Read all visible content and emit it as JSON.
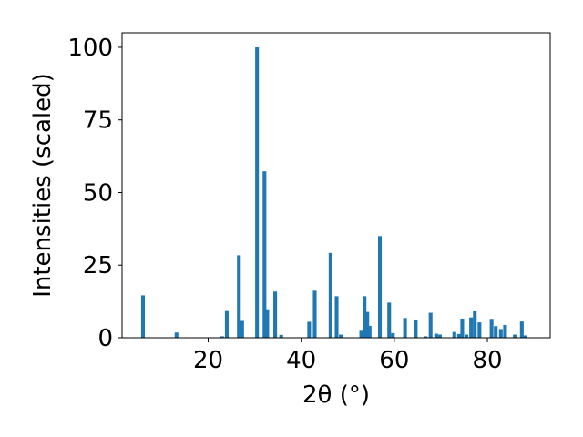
{
  "chart_data": {
    "type": "bar",
    "title": "",
    "xlabel": "2θ (°)",
    "ylabel": "Intensities (scaled)",
    "xlim": [
      1.5,
      93.5
    ],
    "ylim": [
      0,
      105
    ],
    "xticks": [
      20,
      40,
      60,
      80
    ],
    "yticks": [
      0,
      25,
      50,
      75,
      100
    ],
    "grid": false,
    "bar_color": "#1f77b4",
    "bar_width": 0.8,
    "x": [
      6.0,
      13.2,
      23.0,
      24.0,
      26.6,
      27.3,
      30.5,
      32.1,
      32.7,
      34.4,
      35.7,
      41.7,
      42.9,
      46.3,
      47.6,
      48.5,
      52.9,
      53.6,
      54.2,
      54.7,
      56.9,
      58.9,
      59.7,
      62.3,
      64.6,
      66.7,
      67.8,
      69.0,
      69.8,
      72.9,
      73.9,
      74.6,
      75.5,
      76.5,
      77.3,
      78.3,
      80.9,
      81.8,
      82.9,
      83.8,
      85.9,
      87.4,
      88.1
    ],
    "values": [
      14.6,
      1.8,
      0.5,
      9.2,
      28.4,
      5.8,
      100,
      57.3,
      9.8,
      15.9,
      1.0,
      5.5,
      16.2,
      29.2,
      14.3,
      1.1,
      2.4,
      14.3,
      8.9,
      4.1,
      35.0,
      12.1,
      1.6,
      6.8,
      6.1,
      0.5,
      8.6,
      1.4,
      1.1,
      2.0,
      1.3,
      6.6,
      1.1,
      7.0,
      9.1,
      5.3,
      6.5,
      4.0,
      3.0,
      4.4,
      1.1,
      5.6,
      0.8
    ]
  }
}
